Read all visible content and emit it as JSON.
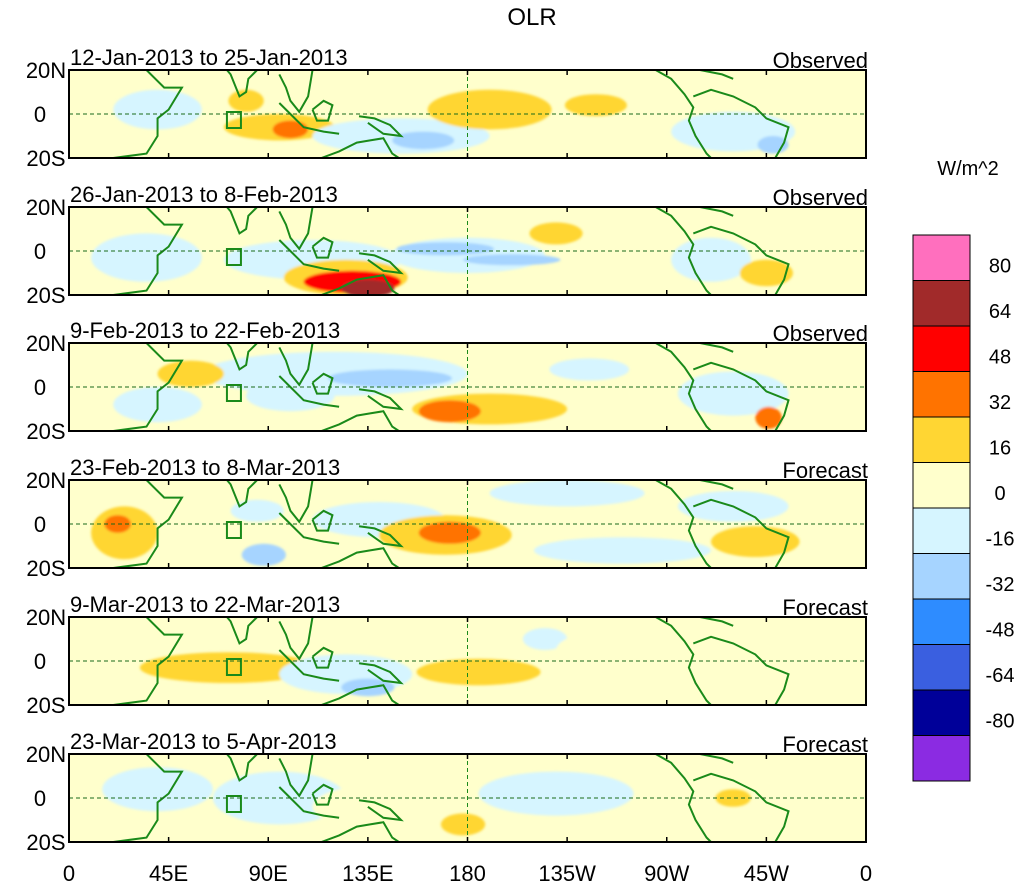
{
  "chart_data": {
    "type": "heatmap",
    "title": "OLR",
    "colorbar": {
      "unit_label": "W/m^2",
      "levels": [
        80,
        64,
        48,
        32,
        16,
        0,
        -16,
        -32,
        -48,
        -64,
        -80
      ],
      "colors_top_to_bottom": [
        "#ff6fbe",
        "#a12a2a",
        "#ff0000",
        "#ff7300",
        "#ffd633",
        "#ffffcc",
        "#d6f5ff",
        "#a6d4ff",
        "#2e8cff",
        "#3a5fe0",
        "#000099",
        "#8b2be2"
      ]
    },
    "x_axis": {
      "range_deg_east": [
        0,
        360
      ],
      "tick_labels": [
        "0",
        "45E",
        "90E",
        "135E",
        "180",
        "135W",
        "90W",
        "45W",
        "0"
      ]
    },
    "y_axis": {
      "range_deg": [
        -20,
        20
      ],
      "tick_labels": [
        "20N",
        "0",
        "20S"
      ]
    },
    "panels": [
      {
        "period": "12-Jan-2013 to 25-Jan-2013",
        "kind": "Observed",
        "blobs": [
          {
            "lon": 40,
            "lat": 2,
            "rlon": 20,
            "rlat": 9,
            "value": -16
          },
          {
            "lon": 95,
            "lat": -6,
            "rlon": 25,
            "rlat": 6,
            "value": 16
          },
          {
            "lon": 80,
            "lat": 6,
            "rlon": 8,
            "rlat": 5,
            "value": 16
          },
          {
            "lon": 100,
            "lat": -7,
            "rlon": 8,
            "rlat": 4,
            "value": 32
          },
          {
            "lon": 150,
            "lat": -10,
            "rlon": 40,
            "rlat": 8,
            "value": -16
          },
          {
            "lon": 160,
            "lat": -12,
            "rlon": 14,
            "rlat": 4,
            "value": -32
          },
          {
            "lon": 190,
            "lat": 2,
            "rlon": 28,
            "rlat": 9,
            "value": 16
          },
          {
            "lon": 238,
            "lat": 4,
            "rlon": 14,
            "rlat": 5,
            "value": 16
          },
          {
            "lon": 300,
            "lat": -8,
            "rlon": 28,
            "rlat": 9,
            "value": -16
          },
          {
            "lon": 318,
            "lat": -14,
            "rlon": 7,
            "rlat": 4,
            "value": -32
          }
        ]
      },
      {
        "period": "26-Jan-2013 to 8-Feb-2013",
        "kind": "Observed",
        "blobs": [
          {
            "lon": 35,
            "lat": -3,
            "rlon": 25,
            "rlat": 11,
            "value": -16
          },
          {
            "lon": 110,
            "lat": -4,
            "rlon": 40,
            "rlat": 9,
            "value": -16
          },
          {
            "lon": 125,
            "lat": -12,
            "rlon": 28,
            "rlat": 8,
            "value": 16
          },
          {
            "lon": 128,
            "lat": -14,
            "rlon": 22,
            "rlat": 5,
            "value": 48
          },
          {
            "lon": 135,
            "lat": -17,
            "rlon": 12,
            "rlat": 4,
            "value": 64
          },
          {
            "lon": 180,
            "lat": -2,
            "rlon": 35,
            "rlat": 8,
            "value": -16
          },
          {
            "lon": 170,
            "lat": 1,
            "rlon": 22,
            "rlat": 3,
            "value": -32
          },
          {
            "lon": 200,
            "lat": -4,
            "rlon": 22,
            "rlat": 2.5,
            "value": -32
          },
          {
            "lon": 220,
            "lat": 8,
            "rlon": 12,
            "rlat": 5,
            "value": 16
          },
          {
            "lon": 290,
            "lat": -4,
            "rlon": 18,
            "rlat": 10,
            "value": -16
          },
          {
            "lon": 315,
            "lat": -10,
            "rlon": 12,
            "rlat": 6,
            "value": 16
          }
        ]
      },
      {
        "period": "9-Feb-2013 to 22-Feb-2013",
        "kind": "Observed",
        "blobs": [
          {
            "lon": 120,
            "lat": 6,
            "rlon": 60,
            "rlat": 10,
            "value": -16
          },
          {
            "lon": 145,
            "lat": 4,
            "rlon": 28,
            "rlat": 4,
            "value": -32
          },
          {
            "lon": 100,
            "lat": -4,
            "rlon": 20,
            "rlat": 7,
            "value": -16
          },
          {
            "lon": 190,
            "lat": -10,
            "rlon": 35,
            "rlat": 7,
            "value": 16
          },
          {
            "lon": 172,
            "lat": -11,
            "rlon": 14,
            "rlat": 5,
            "value": 32
          },
          {
            "lon": 235,
            "lat": 8,
            "rlon": 18,
            "rlat": 5,
            "value": -16
          },
          {
            "lon": 300,
            "lat": -3,
            "rlon": 25,
            "rlat": 10,
            "value": -16
          },
          {
            "lon": 316,
            "lat": -14,
            "rlon": 6,
            "rlat": 5,
            "value": 32
          },
          {
            "lon": 40,
            "lat": -8,
            "rlon": 20,
            "rlat": 8,
            "value": -16
          },
          {
            "lon": 55,
            "lat": 6,
            "rlon": 15,
            "rlat": 6,
            "value": 16
          }
        ]
      },
      {
        "period": "23-Feb-2013 to 8-Mar-2013",
        "kind": "Forecast",
        "blobs": [
          {
            "lon": 25,
            "lat": -4,
            "rlon": 15,
            "rlat": 12,
            "value": 16
          },
          {
            "lon": 22,
            "lat": 0,
            "rlon": 6,
            "rlat": 4,
            "value": 32
          },
          {
            "lon": 85,
            "lat": 6,
            "rlon": 12,
            "rlat": 5,
            "value": -16
          },
          {
            "lon": 88,
            "lat": -14,
            "rlon": 10,
            "rlat": 5,
            "value": -32
          },
          {
            "lon": 140,
            "lat": 2,
            "rlon": 30,
            "rlat": 8,
            "value": -16
          },
          {
            "lon": 170,
            "lat": -5,
            "rlon": 30,
            "rlat": 9,
            "value": 16
          },
          {
            "lon": 172,
            "lat": -4,
            "rlon": 14,
            "rlat": 5,
            "value": 32
          },
          {
            "lon": 225,
            "lat": 14,
            "rlon": 35,
            "rlat": 6,
            "value": -16
          },
          {
            "lon": 250,
            "lat": -12,
            "rlon": 40,
            "rlat": 6,
            "value": -16
          },
          {
            "lon": 300,
            "lat": 8,
            "rlon": 25,
            "rlat": 7,
            "value": -16
          },
          {
            "lon": 310,
            "lat": -8,
            "rlon": 20,
            "rlat": 7,
            "value": 16
          }
        ]
      },
      {
        "period": "9-Mar-2013 to 22-Mar-2013",
        "kind": "Forecast",
        "blobs": [
          {
            "lon": 72,
            "lat": -3,
            "rlon": 40,
            "rlat": 7,
            "value": 16
          },
          {
            "lon": 125,
            "lat": -6,
            "rlon": 30,
            "rlat": 9,
            "value": -16
          },
          {
            "lon": 135,
            "lat": -12,
            "rlon": 12,
            "rlat": 4,
            "value": -32
          },
          {
            "lon": 185,
            "lat": -5,
            "rlon": 28,
            "rlat": 6,
            "value": 16
          },
          {
            "lon": 215,
            "lat": 10,
            "rlon": 10,
            "rlat": 5,
            "value": -16
          },
          {
            "lon": 270,
            "lat": 5,
            "rlon": 50,
            "rlat": 12,
            "value": 0
          }
        ]
      },
      {
        "period": "23-Mar-2013 to 5-Apr-2013",
        "kind": "Forecast",
        "blobs": [
          {
            "lon": 40,
            "lat": 4,
            "rlon": 25,
            "rlat": 10,
            "value": -16
          },
          {
            "lon": 95,
            "lat": 0,
            "rlon": 30,
            "rlat": 12,
            "value": -16
          },
          {
            "lon": 140,
            "lat": -4,
            "rlon": 30,
            "rlat": 10,
            "value": 0
          },
          {
            "lon": 178,
            "lat": -12,
            "rlon": 10,
            "rlat": 5,
            "value": 16
          },
          {
            "lon": 220,
            "lat": 2,
            "rlon": 35,
            "rlat": 10,
            "value": -16
          },
          {
            "lon": 300,
            "lat": 0,
            "rlon": 8,
            "rlat": 4,
            "value": 16
          }
        ]
      }
    ]
  }
}
